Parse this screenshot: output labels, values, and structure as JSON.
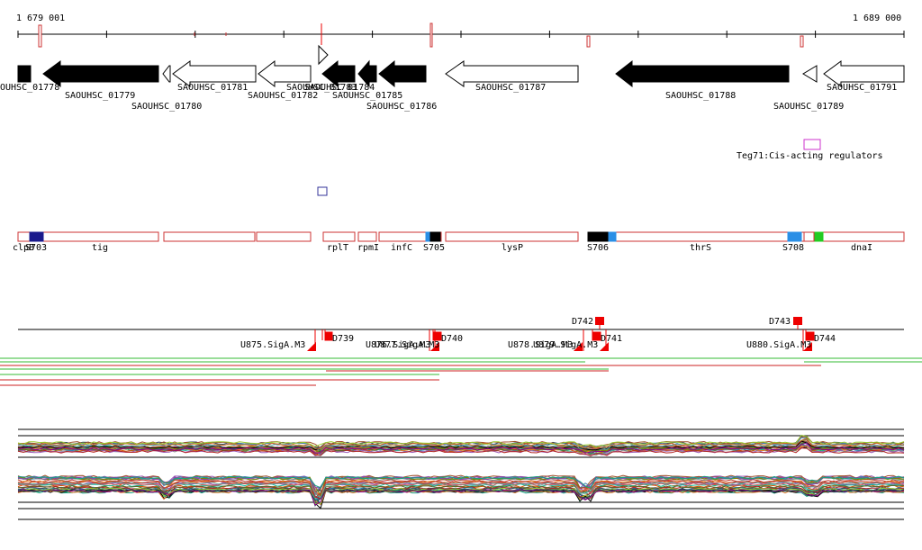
{
  "ruler": {
    "start_label": "1 679 001",
    "end_label": "1 689 000"
  },
  "genes": [
    {
      "id": "g1778",
      "label": "OUHSC_01778",
      "filled": true,
      "dir": "none"
    },
    {
      "id": "g1779",
      "label": "SAOUHSC_01779",
      "filled": true,
      "dir": "left"
    },
    {
      "id": "g1780",
      "label": "SAOUHSC_01780",
      "filled": false,
      "dir": "left"
    },
    {
      "id": "g1781",
      "label": "SAOUHSC_01781",
      "filled": false,
      "dir": "left"
    },
    {
      "id": "g1782",
      "label": "SAOUHSC_01782",
      "filled": false,
      "dir": "left"
    },
    {
      "id": "g1783",
      "label": "SAOUHSC_01783",
      "filled": true,
      "dir": "left"
    },
    {
      "id": "g1784",
      "label": "SAOUHSC_01784",
      "filled": true,
      "dir": "left"
    },
    {
      "id": "g1785",
      "label": "SAOUHSC_01785",
      "filled": true,
      "dir": "left"
    },
    {
      "id": "g1786",
      "label": "SAOUHSC_01786",
      "filled": true,
      "dir": "left"
    },
    {
      "id": "g1787",
      "label": "SAOUHSC_01787",
      "filled": false,
      "dir": "left"
    },
    {
      "id": "g1788",
      "label": "SAOUHSC_01788",
      "filled": true,
      "dir": "left"
    },
    {
      "id": "g1789",
      "label": "SAOUHSC_01789",
      "filled": false,
      "dir": "left"
    },
    {
      "id": "g1791",
      "label": "SAOUHSC_01791",
      "filled": false,
      "dir": "left"
    }
  ],
  "regulator": {
    "label": "Teg71:Cis-acting regulators",
    "color": "#cc33cc"
  },
  "operon_labels": [
    "clpB",
    "S703",
    "tig",
    "rplT",
    "rpmI",
    "infC",
    "S705",
    "lysP",
    "S706",
    "thrS",
    "S708",
    "dnaI"
  ],
  "terminators": [
    "D739",
    "D740",
    "D741",
    "D742",
    "D743",
    "D744"
  ],
  "promoters": [
    "U875.SigA.M3",
    "U876.SigA.M3",
    "U877.SigA.M3",
    "U878.SigA.M3",
    "U879.SigA.M3",
    "U880.SigA.M3"
  ],
  "colors": {
    "operon_outline": "#cc3333",
    "ruler_tick_red": "#cc3333",
    "feature_red": "#ee0000",
    "s_blue": "#2a8fe6",
    "s_navy": "#1a1a8c",
    "s_green": "#22cc22",
    "read_green": "#33bb33",
    "read_red": "#cc2222",
    "box_navy": "#333399"
  }
}
